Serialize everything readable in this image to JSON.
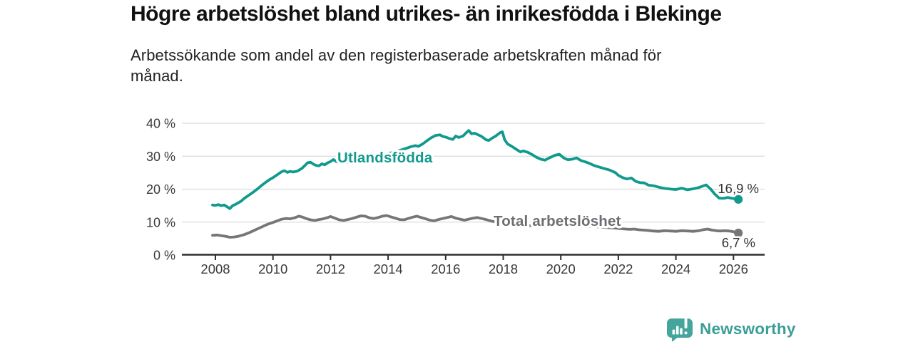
{
  "header": {
    "title": "Högre arbetslöshet bland utrikes- än inrikesfödda i Blekinge",
    "subtitle": "Arbetssökande som andel av den registerbaserade arbetskraften månad för månad."
  },
  "branding": {
    "logo_text": "Newsworthy",
    "logo_color": "#44a59d"
  },
  "colors": {
    "foreign_born_line": "#109a8d",
    "total_line": "#76767a",
    "gridline": "#dcdcdc",
    "axis": "#2e2e2e",
    "tick_label": "#3a3a3a",
    "value_label": "#333333",
    "total_label_text": "#6d6d72"
  },
  "chart_data": {
    "type": "line",
    "title": "Högre arbetslöshet bland utrikes- än inrikesfödda i Blekinge",
    "subtitle": "Arbetssökande som andel av den registerbaserade arbetskraften månad för månad.",
    "unit": "%",
    "grid": "horizontal",
    "legend_position": "inline-labels",
    "xlim": [
      2006.8,
      2027.1
    ],
    "ylim": [
      0,
      40
    ],
    "x_ticks": [
      2008,
      2010,
      2012,
      2014,
      2016,
      2018,
      2020,
      2022,
      2024,
      2026
    ],
    "x_tick_labels": [
      "2008",
      "2010",
      "2012",
      "2014",
      "2016",
      "2018",
      "2020",
      "2022",
      "2024",
      "2026"
    ],
    "y_ticks": [
      0,
      10,
      20,
      30,
      40
    ],
    "y_tick_labels": [
      "0 %",
      "10 %",
      "20 %",
      "30 %",
      "40 %"
    ],
    "series": [
      {
        "name": "Utlandsfödda",
        "color": "#109a8d",
        "end_label": "16,9 %",
        "end_value": 16.9,
        "points": [
          [
            2007.9,
            15.2
          ],
          [
            2008.0,
            15.1
          ],
          [
            2008.1,
            15.3
          ],
          [
            2008.2,
            15.0
          ],
          [
            2008.3,
            15.2
          ],
          [
            2008.4,
            14.7
          ],
          [
            2008.5,
            14.1
          ],
          [
            2008.6,
            15.0
          ],
          [
            2008.7,
            15.4
          ],
          [
            2008.8,
            15.9
          ],
          [
            2008.9,
            16.4
          ],
          [
            2009.0,
            17.2
          ],
          [
            2009.15,
            18.1
          ],
          [
            2009.3,
            19.0
          ],
          [
            2009.45,
            20.0
          ],
          [
            2009.6,
            21.1
          ],
          [
            2009.75,
            22.1
          ],
          [
            2009.9,
            23.0
          ],
          [
            2010.0,
            23.5
          ],
          [
            2010.15,
            24.4
          ],
          [
            2010.3,
            25.3
          ],
          [
            2010.4,
            25.6
          ],
          [
            2010.5,
            25.1
          ],
          [
            2010.6,
            25.4
          ],
          [
            2010.7,
            25.2
          ],
          [
            2010.85,
            25.5
          ],
          [
            2011.0,
            26.3
          ],
          [
            2011.1,
            27.1
          ],
          [
            2011.2,
            28.0
          ],
          [
            2011.3,
            28.2
          ],
          [
            2011.4,
            27.6
          ],
          [
            2011.5,
            27.2
          ],
          [
            2011.6,
            27.1
          ],
          [
            2011.7,
            27.7
          ],
          [
            2011.8,
            27.4
          ],
          [
            2011.9,
            28.0
          ],
          [
            2012.0,
            28.4
          ],
          [
            2012.1,
            29.0
          ],
          [
            2012.2,
            28.4
          ],
          [
            2012.35,
            27.9
          ],
          [
            2012.5,
            28.0
          ],
          [
            2012.7,
            28.3
          ],
          [
            2012.9,
            28.8
          ],
          [
            2013.1,
            29.2
          ],
          [
            2013.35,
            29.6
          ],
          [
            2013.6,
            30.0
          ],
          [
            2013.85,
            30.5
          ],
          [
            2014.1,
            31.0
          ],
          [
            2014.35,
            31.6
          ],
          [
            2014.6,
            32.3
          ],
          [
            2014.8,
            32.9
          ],
          [
            2014.95,
            33.2
          ],
          [
            2015.05,
            33.0
          ],
          [
            2015.2,
            33.7
          ],
          [
            2015.35,
            34.7
          ],
          [
            2015.5,
            35.6
          ],
          [
            2015.65,
            36.3
          ],
          [
            2015.8,
            36.5
          ],
          [
            2015.9,
            36.0
          ],
          [
            2016.0,
            35.8
          ],
          [
            2016.15,
            35.3
          ],
          [
            2016.25,
            35.1
          ],
          [
            2016.35,
            36.1
          ],
          [
            2016.45,
            35.7
          ],
          [
            2016.6,
            36.1
          ],
          [
            2016.7,
            37.0
          ],
          [
            2016.8,
            37.8
          ],
          [
            2016.9,
            36.8
          ],
          [
            2017.0,
            37.0
          ],
          [
            2017.1,
            36.6
          ],
          [
            2017.25,
            36.0
          ],
          [
            2017.4,
            35.0
          ],
          [
            2017.5,
            34.8
          ],
          [
            2017.6,
            35.4
          ],
          [
            2017.75,
            36.2
          ],
          [
            2017.9,
            37.2
          ],
          [
            2017.97,
            37.4
          ],
          [
            2018.05,
            35.0
          ],
          [
            2018.15,
            33.7
          ],
          [
            2018.3,
            33.0
          ],
          [
            2018.45,
            32.1
          ],
          [
            2018.6,
            31.3
          ],
          [
            2018.7,
            31.6
          ],
          [
            2018.85,
            31.2
          ],
          [
            2019.0,
            30.5
          ],
          [
            2019.15,
            29.7
          ],
          [
            2019.3,
            29.1
          ],
          [
            2019.45,
            28.8
          ],
          [
            2019.6,
            29.5
          ],
          [
            2019.8,
            30.3
          ],
          [
            2019.95,
            30.6
          ],
          [
            2020.1,
            29.5
          ],
          [
            2020.25,
            28.9
          ],
          [
            2020.4,
            29.1
          ],
          [
            2020.55,
            29.5
          ],
          [
            2020.7,
            28.7
          ],
          [
            2020.85,
            28.3
          ],
          [
            2021.0,
            27.8
          ],
          [
            2021.15,
            27.2
          ],
          [
            2021.3,
            26.8
          ],
          [
            2021.5,
            26.3
          ],
          [
            2021.7,
            25.8
          ],
          [
            2021.9,
            25.0
          ],
          [
            2022.0,
            24.2
          ],
          [
            2022.15,
            23.5
          ],
          [
            2022.3,
            23.1
          ],
          [
            2022.45,
            23.4
          ],
          [
            2022.6,
            22.4
          ],
          [
            2022.75,
            22.0
          ],
          [
            2022.9,
            21.9
          ],
          [
            2023.05,
            21.2
          ],
          [
            2023.25,
            21.0
          ],
          [
            2023.45,
            20.5
          ],
          [
            2023.65,
            20.2
          ],
          [
            2023.85,
            20.0
          ],
          [
            2024.0,
            19.9
          ],
          [
            2024.2,
            20.3
          ],
          [
            2024.4,
            19.8
          ],
          [
            2024.6,
            20.1
          ],
          [
            2024.8,
            20.5
          ],
          [
            2024.95,
            21.0
          ],
          [
            2025.05,
            21.3
          ],
          [
            2025.2,
            20.1
          ],
          [
            2025.35,
            18.5
          ],
          [
            2025.5,
            17.3
          ],
          [
            2025.65,
            17.2
          ],
          [
            2025.8,
            17.5
          ],
          [
            2025.95,
            17.2
          ],
          [
            2026.17,
            16.9
          ]
        ]
      },
      {
        "name": "Total arbetslöshet",
        "color": "#76767a",
        "end_label": "6,7 %",
        "end_value": 6.7,
        "points": [
          [
            2007.9,
            6.0
          ],
          [
            2008.05,
            6.1
          ],
          [
            2008.2,
            5.9
          ],
          [
            2008.35,
            5.7
          ],
          [
            2008.5,
            5.4
          ],
          [
            2008.65,
            5.5
          ],
          [
            2008.8,
            5.7
          ],
          [
            2009.0,
            6.2
          ],
          [
            2009.2,
            6.9
          ],
          [
            2009.4,
            7.7
          ],
          [
            2009.6,
            8.5
          ],
          [
            2009.8,
            9.3
          ],
          [
            2010.0,
            9.9
          ],
          [
            2010.15,
            10.4
          ],
          [
            2010.3,
            10.9
          ],
          [
            2010.45,
            11.1
          ],
          [
            2010.6,
            11.0
          ],
          [
            2010.75,
            11.3
          ],
          [
            2010.9,
            11.8
          ],
          [
            2011.0,
            11.6
          ],
          [
            2011.15,
            11.1
          ],
          [
            2011.3,
            10.7
          ],
          [
            2011.45,
            10.5
          ],
          [
            2011.6,
            10.8
          ],
          [
            2011.75,
            11.0
          ],
          [
            2011.9,
            11.4
          ],
          [
            2012.0,
            11.7
          ],
          [
            2012.15,
            11.2
          ],
          [
            2012.3,
            10.7
          ],
          [
            2012.45,
            10.5
          ],
          [
            2012.6,
            10.8
          ],
          [
            2012.75,
            11.1
          ],
          [
            2012.9,
            11.5
          ],
          [
            2013.05,
            11.9
          ],
          [
            2013.2,
            11.8
          ],
          [
            2013.35,
            11.3
          ],
          [
            2013.5,
            11.1
          ],
          [
            2013.65,
            11.4
          ],
          [
            2013.8,
            11.8
          ],
          [
            2013.95,
            12.0
          ],
          [
            2014.1,
            11.6
          ],
          [
            2014.25,
            11.2
          ],
          [
            2014.4,
            10.8
          ],
          [
            2014.55,
            10.7
          ],
          [
            2014.7,
            11.1
          ],
          [
            2014.85,
            11.5
          ],
          [
            2015.0,
            11.8
          ],
          [
            2015.15,
            11.4
          ],
          [
            2015.3,
            11.0
          ],
          [
            2015.45,
            10.6
          ],
          [
            2015.6,
            10.4
          ],
          [
            2015.75,
            10.8
          ],
          [
            2015.9,
            11.1
          ],
          [
            2016.05,
            11.4
          ],
          [
            2016.2,
            11.7
          ],
          [
            2016.35,
            11.2
          ],
          [
            2016.5,
            10.9
          ],
          [
            2016.65,
            10.6
          ],
          [
            2016.8,
            10.9
          ],
          [
            2016.95,
            11.2
          ],
          [
            2017.1,
            11.4
          ],
          [
            2017.25,
            11.1
          ],
          [
            2017.4,
            10.8
          ],
          [
            2017.55,
            10.4
          ],
          [
            2017.7,
            10.1
          ],
          [
            2018.0,
            9.7
          ],
          [
            2018.5,
            9.2
          ],
          [
            2019.0,
            8.9
          ],
          [
            2019.5,
            8.7
          ],
          [
            2020.0,
            9.0
          ],
          [
            2020.5,
            9.1
          ],
          [
            2021.0,
            8.8
          ],
          [
            2021.5,
            8.4
          ],
          [
            2021.9,
            8.2
          ],
          [
            2022.1,
            8.0
          ],
          [
            2022.25,
            7.9
          ],
          [
            2022.4,
            7.8
          ],
          [
            2022.55,
            7.9
          ],
          [
            2022.7,
            7.7
          ],
          [
            2022.85,
            7.6
          ],
          [
            2023.0,
            7.5
          ],
          [
            2023.2,
            7.3
          ],
          [
            2023.4,
            7.2
          ],
          [
            2023.6,
            7.4
          ],
          [
            2023.8,
            7.3
          ],
          [
            2024.0,
            7.2
          ],
          [
            2024.2,
            7.4
          ],
          [
            2024.4,
            7.3
          ],
          [
            2024.6,
            7.2
          ],
          [
            2024.8,
            7.4
          ],
          [
            2024.95,
            7.7
          ],
          [
            2025.1,
            7.9
          ],
          [
            2025.25,
            7.6
          ],
          [
            2025.4,
            7.4
          ],
          [
            2025.55,
            7.3
          ],
          [
            2025.7,
            7.4
          ],
          [
            2025.85,
            7.3
          ],
          [
            2026.0,
            7.1
          ],
          [
            2026.17,
            6.7
          ]
        ]
      }
    ]
  }
}
